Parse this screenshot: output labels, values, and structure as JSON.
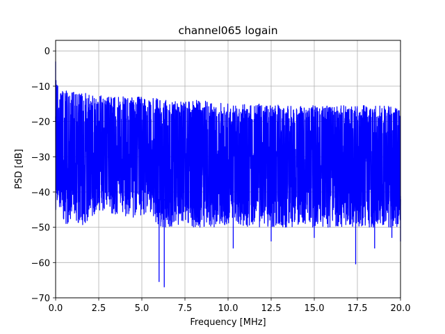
{
  "chart_data": {
    "type": "line",
    "title": "channel065 logain",
    "xlabel": "Frequency [MHz]",
    "ylabel": "PSD [dB]",
    "xlim": [
      0,
      20
    ],
    "ylim": [
      -70,
      3
    ],
    "xticks": [
      0.0,
      2.5,
      5.0,
      7.5,
      10.0,
      12.5,
      15.0,
      17.5,
      20.0
    ],
    "xtick_labels": [
      "0.0",
      "2.5",
      "5.0",
      "7.5",
      "10.0",
      "12.5",
      "15.0",
      "17.5",
      "20.0"
    ],
    "yticks": [
      0,
      -10,
      -20,
      -30,
      -40,
      -50,
      -60,
      -70
    ],
    "ytick_labels": [
      "0",
      "−10",
      "−20",
      "−30",
      "−40",
      "−50",
      "−60",
      "−70"
    ],
    "grid": true,
    "line_color": "#0000ff",
    "series": [
      {
        "x": [
          0.0,
          0.05,
          0.1,
          0.2,
          0.4,
          0.7,
          1.0,
          1.5,
          2.0,
          2.5,
          3.0,
          4.0,
          5.0,
          5.8,
          6.0,
          6.2,
          6.3,
          7.5,
          8.5,
          9.0,
          10.0,
          10.3,
          11.0,
          12.5,
          13.5,
          15.0,
          17.0,
          17.4,
          18.5,
          19.5,
          20.0
        ],
        "envelope_max": [
          -3,
          -7,
          -8.5,
          -9.5,
          -10.5,
          -11,
          -11.5,
          -12,
          -12,
          -12.5,
          -13,
          -13,
          -13,
          -13.5,
          -13.5,
          -13.5,
          -14,
          -14,
          -14,
          -14.5,
          -14.5,
          -14.5,
          -15,
          -15,
          -15.5,
          -15.5,
          -15.5,
          -15.5,
          -15.5,
          -15.5,
          -16
        ],
        "envelope_min": [
          -45,
          -46,
          -45,
          -44,
          -47,
          -50,
          -46,
          -51,
          -47,
          -46,
          -47,
          -48,
          -47,
          -48,
          -65.5,
          -46,
          -67,
          -49,
          -51,
          -52,
          -51,
          -56,
          -52,
          -54,
          -52,
          -53,
          -52,
          -60.5,
          -56,
          -53,
          -54
        ]
      }
    ]
  }
}
